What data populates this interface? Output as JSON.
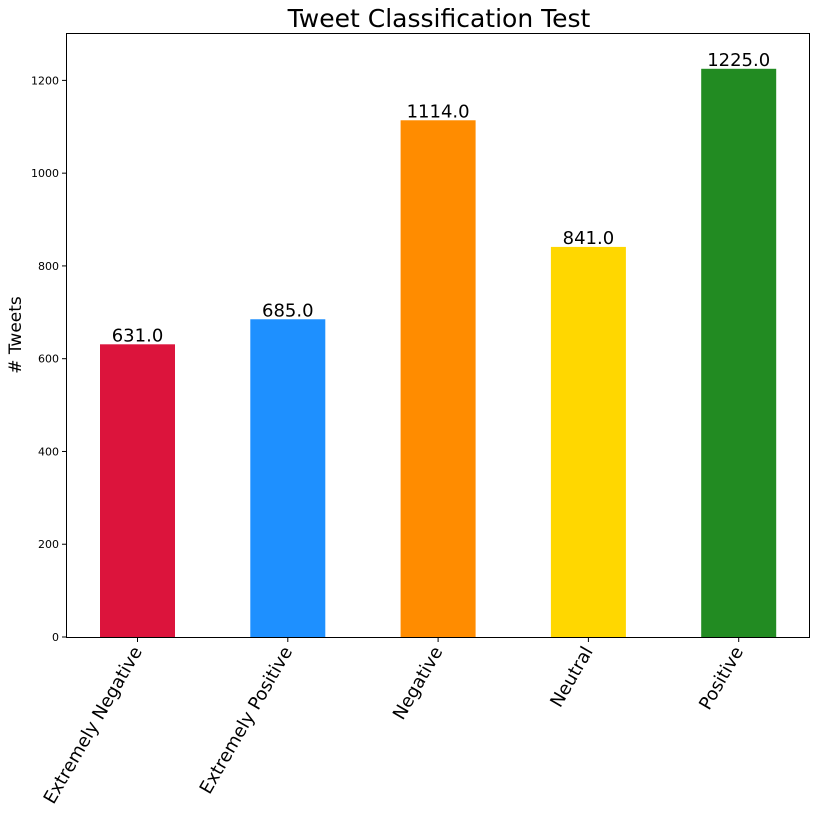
{
  "chart_data": {
    "type": "bar",
    "title": "Tweet Classification Test",
    "xlabel": "",
    "ylabel": "# Tweets",
    "categories": [
      "Extremely Negative",
      "Extremely Positive",
      "Negative",
      "Neutral",
      "Positive"
    ],
    "values": [
      631.0,
      685.0,
      1114.0,
      841.0,
      1225.0
    ],
    "value_labels": [
      "631.0",
      "685.0",
      "1114.0",
      "841.0",
      "1225.0"
    ],
    "colors": [
      "#DC143C",
      "#1E90FF",
      "#FF8C00",
      "#FFD700",
      "#228B22"
    ],
    "yticks": [
      0,
      200,
      400,
      600,
      800,
      1000,
      1200
    ],
    "ylim": [
      0,
      1300
    ],
    "grid": false,
    "legend": "none"
  }
}
